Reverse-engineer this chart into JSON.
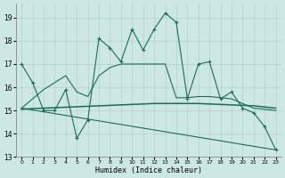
{
  "xlabel": "Humidex (Indice chaleur)",
  "background_color": "#cde8e4",
  "line_color": "#1a6b5a",
  "xlim": [
    -0.5,
    23.5
  ],
  "ylim": [
    13,
    19.6
  ],
  "yticks": [
    13,
    14,
    15,
    16,
    17,
    18,
    19
  ],
  "xticks": [
    0,
    1,
    2,
    3,
    4,
    5,
    6,
    7,
    8,
    9,
    10,
    11,
    12,
    13,
    14,
    15,
    16,
    17,
    18,
    19,
    20,
    21,
    22,
    23
  ],
  "curve1_x": [
    0,
    1,
    2,
    3,
    4,
    5,
    6,
    7,
    8,
    9,
    10,
    11,
    12,
    13,
    14,
    15,
    16,
    17,
    18,
    19,
    20,
    21,
    22,
    23
  ],
  "curve1_y": [
    17.0,
    16.2,
    15.0,
    15.0,
    15.9,
    13.8,
    14.6,
    18.1,
    17.7,
    17.1,
    18.5,
    17.6,
    18.5,
    19.2,
    18.8,
    15.5,
    17.0,
    17.1,
    15.5,
    15.8,
    15.1,
    14.9,
    14.3,
    13.3
  ],
  "curve2_x": [
    0,
    1,
    2,
    3,
    4,
    5,
    6,
    7,
    8,
    9,
    10,
    11,
    12,
    13,
    14,
    15,
    16,
    17,
    18,
    19,
    20,
    21,
    22,
    23
  ],
  "curve2_y": [
    15.05,
    15.08,
    15.1,
    15.12,
    15.14,
    15.16,
    15.18,
    15.2,
    15.22,
    15.24,
    15.26,
    15.28,
    15.3,
    15.3,
    15.3,
    15.3,
    15.3,
    15.28,
    15.26,
    15.24,
    15.22,
    15.2,
    15.15,
    15.1
  ],
  "curve3_x": [
    0,
    23
  ],
  "curve3_y": [
    15.1,
    13.3
  ],
  "curve4_x": [
    0,
    1,
    2,
    3,
    4,
    5,
    6,
    7,
    8,
    9,
    10,
    11,
    12,
    13,
    14,
    15,
    16,
    17,
    18,
    19,
    20,
    21,
    22,
    23
  ],
  "curve4_y": [
    15.1,
    15.5,
    15.9,
    16.2,
    16.5,
    15.8,
    15.6,
    16.5,
    16.85,
    17.0,
    17.0,
    17.0,
    17.0,
    17.0,
    15.55,
    15.55,
    15.6,
    15.6,
    15.55,
    15.5,
    15.3,
    15.1,
    15.05,
    15.0
  ]
}
